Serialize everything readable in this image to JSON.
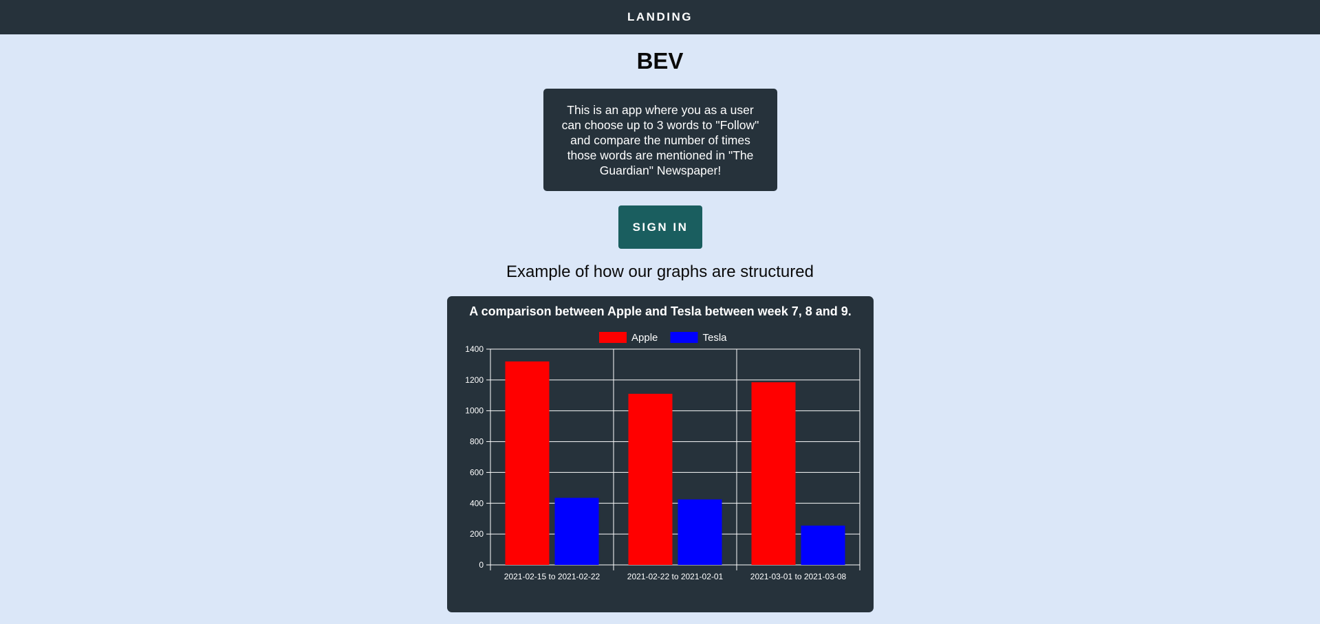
{
  "header": {
    "title": "LANDING"
  },
  "main": {
    "app_title": "BEV",
    "intro_text": "This is an app where you as a user can choose up to 3 words to \"Follow\" and compare the number of times those words are mentioned in \"The Guardian\" Newspaper!",
    "signin_label": "SIGN IN",
    "graphs_heading": "Example of how our graphs are structured"
  },
  "colors": {
    "background": "#dbe7f8",
    "dark_panel": "#26323b",
    "signin_button": "#1a5e5f"
  },
  "chart_data": {
    "type": "bar",
    "title": "A comparison between Apple and Tesla between week 7, 8 and 9.",
    "categories": [
      "2021-02-15 to 2021-02-22",
      "2021-02-22 to 2021-02-01",
      "2021-03-01 to 2021-03-08"
    ],
    "series": [
      {
        "name": "Apple",
        "color": "#ff0000",
        "values": [
          1320,
          1110,
          1185
        ]
      },
      {
        "name": "Tesla",
        "color": "#0000ff",
        "values": [
          435,
          425,
          255
        ]
      }
    ],
    "ylim": [
      0,
      1400
    ],
    "yticks": [
      0,
      200,
      400,
      600,
      800,
      1000,
      1200,
      1400
    ],
    "grid": true,
    "legend": "top"
  }
}
